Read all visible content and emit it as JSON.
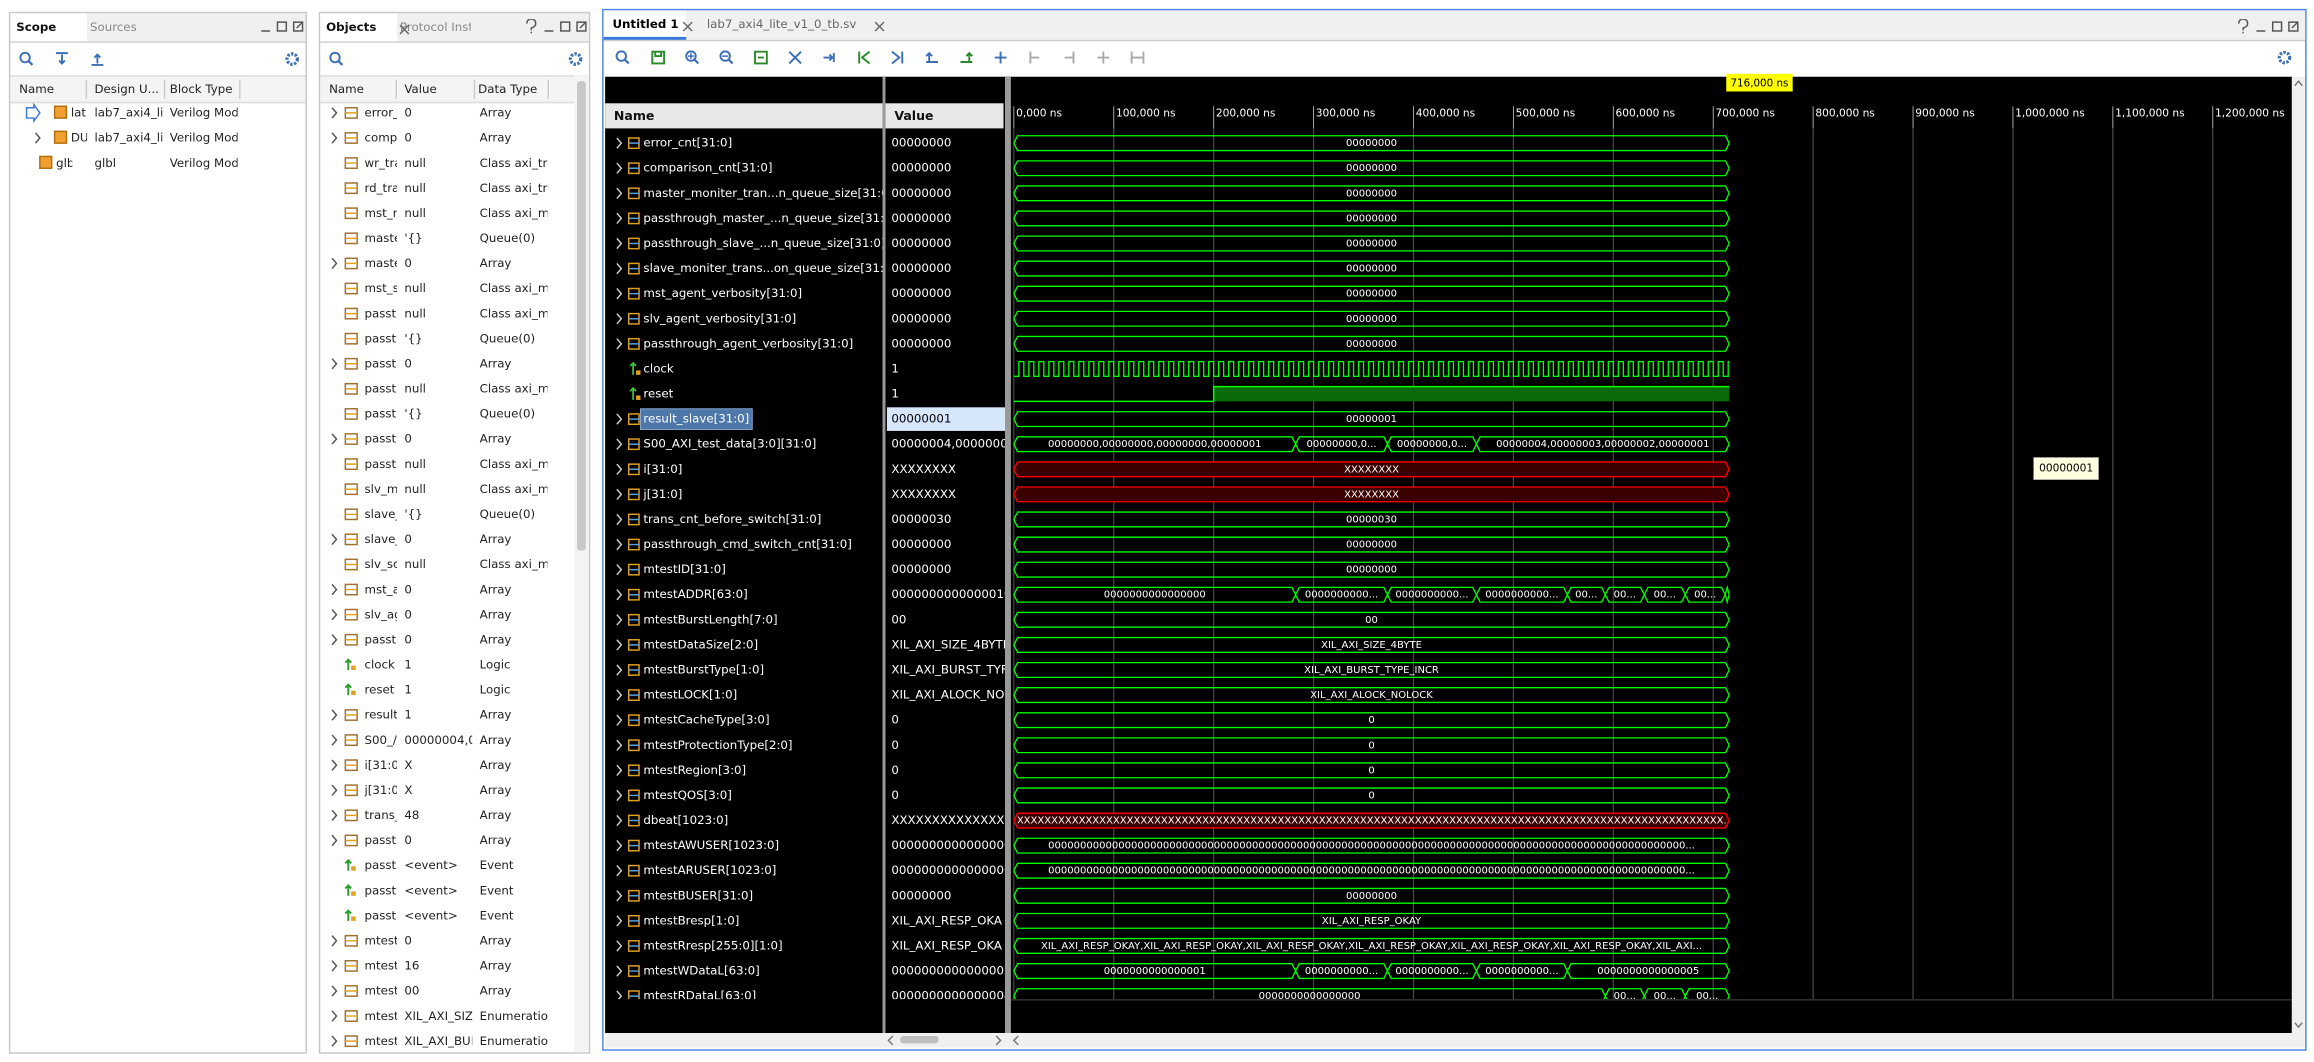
{
  "scope_panel": {
    "tabs": [
      "Scope",
      "Sources"
    ],
    "columns": [
      "Name",
      "Design U...",
      "Block Type"
    ],
    "rows": [
      [
        "lat",
        "lab7_axi4_li",
        "Verilog Modu"
      ],
      [
        "DU",
        "lab7_axi4_li",
        "Verilog Modu"
      ],
      [
        "glbl",
        "glbl",
        "Verilog Modu"
      ]
    ]
  },
  "objects_panel": {
    "tabs": [
      "Objects",
      "Protocol Inst"
    ],
    "columns": [
      "Name",
      "Value",
      "Data Type"
    ],
    "rows": [
      [
        "error_",
        "0",
        "Array"
      ],
      [
        "comp:",
        "0",
        "Array"
      ],
      [
        "wr_tra",
        "null",
        "Class axi_tr"
      ],
      [
        "rd_tra",
        "null",
        "Class axi_tr"
      ],
      [
        "mst_r",
        "null",
        "Class axi_m"
      ],
      [
        "maste",
        "'{}",
        "Queue(0)"
      ],
      [
        "maste",
        "0",
        "Array"
      ],
      [
        "mst_s",
        "null",
        "Class axi_m"
      ],
      [
        "passtl",
        "null",
        "Class axi_m"
      ],
      [
        "passtl",
        "'{}",
        "Queue(0)"
      ],
      [
        "passtl",
        "0",
        "Array"
      ],
      [
        "passtl",
        "null",
        "Class axi_m"
      ],
      [
        "passtl",
        "'{}",
        "Queue(0)"
      ],
      [
        "passtl",
        "0",
        "Array"
      ],
      [
        "passtl",
        "null",
        "Class axi_m"
      ],
      [
        "slv_m",
        "null",
        "Class axi_m"
      ],
      [
        "slave_",
        "'{}",
        "Queue(0)"
      ],
      [
        "slave_",
        "0",
        "Array"
      ],
      [
        "slv_sc",
        "null",
        "Class axi_m"
      ],
      [
        "mst_a",
        "0",
        "Array"
      ],
      [
        "slv_ag",
        "0",
        "Array"
      ],
      [
        "passtl",
        "0",
        "Array"
      ],
      [
        "clock",
        "1",
        "Logic"
      ],
      [
        "reset",
        "1",
        "Logic"
      ],
      [
        "result",
        "1",
        "Array"
      ],
      [
        "S00_/",
        "00000004,0",
        "Array"
      ],
      [
        "i[31:0]",
        "X",
        "Array"
      ],
      [
        "j[31:0]",
        "X",
        "Array"
      ],
      [
        "trans_",
        "48",
        "Array"
      ],
      [
        "passtl",
        "0",
        "Array"
      ],
      [
        "passtl",
        "<event>",
        "Event"
      ],
      [
        "passtl",
        "<event>",
        "Event"
      ],
      [
        "passtl",
        "<event>",
        "Event"
      ],
      [
        "mtestl",
        "0",
        "Array"
      ],
      [
        "mtest",
        "16",
        "Array"
      ],
      [
        "mtestl",
        "00",
        "Array"
      ],
      [
        "mtestl",
        "XIL_AXI_SIZ",
        "Enumeration"
      ],
      [
        "mtestl",
        "XIL_AXI_BUI",
        "Enumeration"
      ]
    ]
  },
  "wave_window": {
    "tabs": [
      "Untitled 1",
      "lab7_axi4_lite_v1_0_tb.sv"
    ],
    "columns": [
      "Name",
      "Value"
    ],
    "cursor": {
      "value": 716000,
      "label": "716,000 ns"
    },
    "marker_label": "00000001",
    "time_ticks": [
      {
        "value": 0,
        "label": "0,000 ns"
      },
      {
        "value": 100000,
        "label": "100,000 ns"
      },
      {
        "value": 200000,
        "label": "200,000 ns"
      },
      {
        "value": 300000,
        "label": "300,000 ns"
      },
      {
        "value": 400000,
        "label": "400,000 ns"
      },
      {
        "value": 500000,
        "label": "500,000 ns"
      },
      {
        "value": 600000,
        "label": "600,000 ns"
      },
      {
        "value": 700000,
        "label": "700,000 ns"
      },
      {
        "value": 800000,
        "label": "800,000 ns"
      },
      {
        "value": 900000,
        "label": "900,000 ns"
      },
      {
        "value": 1000000,
        "label": "1,000,000 ns"
      },
      {
        "value": 1100000,
        "label": "1,100,000 ns"
      },
      {
        "value": 1200000,
        "label": "1,200,000 ns"
      }
    ],
    "signals": [
      {
        "name": "error_cnt[31:0]",
        "value": "00000000",
        "kind": "bus",
        "color": "#00ff00",
        "wave": [
          {
            "t": 0,
            "label": "00000000"
          }
        ]
      },
      {
        "name": "comparison_cnt[31:0]",
        "value": "00000000",
        "kind": "bus",
        "color": "#00ff00",
        "wave": [
          {
            "t": 0,
            "label": "00000000"
          }
        ]
      },
      {
        "name": "master_moniter_tran...n_queue_size[31:0]",
        "value": "00000000",
        "kind": "bus",
        "color": "#00ff00",
        "wave": [
          {
            "t": 0,
            "label": "00000000"
          }
        ]
      },
      {
        "name": "passthrough_master_...n_queue_size[31:0]",
        "value": "00000000",
        "kind": "bus",
        "color": "#00ff00",
        "wave": [
          {
            "t": 0,
            "label": "00000000"
          }
        ]
      },
      {
        "name": "passthrough_slave_...n_queue_size[31:0]",
        "value": "00000000",
        "kind": "bus",
        "color": "#00ff00",
        "wave": [
          {
            "t": 0,
            "label": "00000000"
          }
        ]
      },
      {
        "name": "slave_moniter_trans...on_queue_size[31:0]",
        "value": "00000000",
        "kind": "bus",
        "color": "#00ff00",
        "wave": [
          {
            "t": 0,
            "label": "00000000"
          }
        ]
      },
      {
        "name": "mst_agent_verbosity[31:0]",
        "value": "00000000",
        "kind": "bus",
        "color": "#00ff00",
        "wave": [
          {
            "t": 0,
            "label": "00000000"
          }
        ]
      },
      {
        "name": "slv_agent_verbosity[31:0]",
        "value": "00000000",
        "kind": "bus",
        "color": "#00ff00",
        "wave": [
          {
            "t": 0,
            "label": "00000000"
          }
        ]
      },
      {
        "name": "passthrough_agent_verbosity[31:0]",
        "value": "00000000",
        "kind": "bus",
        "color": "#00ff00",
        "wave": [
          {
            "t": 0,
            "label": "00000000"
          }
        ]
      },
      {
        "name": "clock",
        "value": "1",
        "kind": "clock",
        "color": "#00ff00",
        "wave": [
          {
            "t": 0
          }
        ]
      },
      {
        "name": "reset",
        "value": "1",
        "kind": "bit",
        "color": "#00ff00",
        "wave": [
          {
            "t": 0,
            "level": 0
          },
          {
            "t": 200000,
            "level": 1
          }
        ]
      },
      {
        "name": "result_slave[31:0]",
        "value": "00000001",
        "kind": "bus",
        "color": "#00ff00",
        "selected": true,
        "wave": [
          {
            "t": 0,
            "label": "00000001"
          }
        ]
      },
      {
        "name": "S00_AXI_test_data[3:0][31:0]",
        "value": "00000004,00000003",
        "kind": "bus",
        "color": "#00ff00",
        "wave": [
          {
            "t": 0,
            "label": "00000000,00000000,00000000,00000001"
          },
          {
            "t": 282000,
            "label": "00000000,0..."
          },
          {
            "t": 374000,
            "label": "00000000,0..."
          },
          {
            "t": 463000,
            "label": "00000004,00000003,00000002,00000001"
          }
        ]
      },
      {
        "name": "i[31:0]",
        "value": "XXXXXXXX",
        "kind": "bus",
        "color": "#ff0000",
        "wave": [
          {
            "t": 0,
            "label": "XXXXXXXX"
          }
        ]
      },
      {
        "name": "j[31:0]",
        "value": "XXXXXXXX",
        "kind": "bus",
        "color": "#ff0000",
        "wave": [
          {
            "t": 0,
            "label": "XXXXXXXX"
          }
        ]
      },
      {
        "name": "trans_cnt_before_switch[31:0]",
        "value": "00000030",
        "kind": "bus",
        "color": "#00ff00",
        "wave": [
          {
            "t": 0,
            "label": "00000030"
          }
        ]
      },
      {
        "name": "passthrough_cmd_switch_cnt[31:0]",
        "value": "00000000",
        "kind": "bus",
        "color": "#00ff00",
        "wave": [
          {
            "t": 0,
            "label": "00000000"
          }
        ]
      },
      {
        "name": "mtestID[31:0]",
        "value": "00000000",
        "kind": "bus",
        "color": "#00ff00",
        "wave": [
          {
            "t": 0,
            "label": "00000000"
          }
        ]
      },
      {
        "name": "mtestADDR[63:0]",
        "value": "0000000000000010",
        "kind": "bus",
        "color": "#00ff00",
        "wave": [
          {
            "t": 0,
            "label": "0000000000000000"
          },
          {
            "t": 282000,
            "label": "0000000000..."
          },
          {
            "t": 374000,
            "label": "0000000000..."
          },
          {
            "t": 463000,
            "label": "0000000000..."
          },
          {
            "t": 554000,
            "label": "00..."
          },
          {
            "t": 592000,
            "label": "00..."
          },
          {
            "t": 631000,
            "label": "00..."
          },
          {
            "t": 672000,
            "label": "00..."
          },
          {
            "t": 712000
          }
        ]
      },
      {
        "name": "mtestBurstLength[7:0]",
        "value": "00",
        "kind": "bus",
        "color": "#00ff00",
        "wave": [
          {
            "t": 0,
            "label": "00"
          }
        ]
      },
      {
        "name": "mtestDataSize[2:0]",
        "value": "XIL_AXI_SIZE_4BYTE",
        "kind": "bus",
        "color": "#00ff00",
        "wave": [
          {
            "t": 0,
            "label": "XIL_AXI_SIZE_4BYTE"
          }
        ]
      },
      {
        "name": "mtestBurstType[1:0]",
        "value": "XIL_AXI_BURST_TYF",
        "kind": "bus",
        "color": "#00ff00",
        "wave": [
          {
            "t": 0,
            "label": "XIL_AXI_BURST_TYPE_INCR"
          }
        ]
      },
      {
        "name": "mtestLOCK[1:0]",
        "value": "XIL_AXI_ALOCK_NO",
        "kind": "bus",
        "color": "#00ff00",
        "wave": [
          {
            "t": 0,
            "label": "XIL_AXI_ALOCK_NOLOCK"
          }
        ]
      },
      {
        "name": "mtestCacheType[3:0]",
        "value": "0",
        "kind": "bus",
        "color": "#00ff00",
        "wave": [
          {
            "t": 0,
            "label": "0"
          }
        ]
      },
      {
        "name": "mtestProtectionType[2:0]",
        "value": "0",
        "kind": "bus",
        "color": "#00ff00",
        "wave": [
          {
            "t": 0,
            "label": "0"
          }
        ]
      },
      {
        "name": "mtestRegion[3:0]",
        "value": "0",
        "kind": "bus",
        "color": "#00ff00",
        "wave": [
          {
            "t": 0,
            "label": "0"
          }
        ]
      },
      {
        "name": "mtestQOS[3:0]",
        "value": "0",
        "kind": "bus",
        "color": "#00ff00",
        "wave": [
          {
            "t": 0,
            "label": "0"
          }
        ]
      },
      {
        "name": "dbeat[1023:0]",
        "value": "XXXXXXXXXXXXXXXXX",
        "kind": "bus",
        "color": "#ff0000",
        "wave": [
          {
            "t": 0,
            "label": "XXXXXXXXXXXXXXXXXXXXXXXXXXXXXXXXXXXXXXXXXXXXXXXXXXXXXXXXXXXXXXXXXXXXXXXXXXXXXXXXXXXXXXXXXXXXXXXXXXXXXXXX..."
          }
        ]
      },
      {
        "name": "mtestAWUSER[1023:0]",
        "value": "0000000000000000",
        "kind": "bus",
        "color": "#00ff00",
        "wave": [
          {
            "t": 0,
            "label": "0000000000000000000000000000000000000000000000000000000000000000000000000000000000000000000000000000..."
          }
        ]
      },
      {
        "name": "mtestARUSER[1023:0]",
        "value": "0000000000000000",
        "kind": "bus",
        "color": "#00ff00",
        "wave": [
          {
            "t": 0,
            "label": "0000000000000000000000000000000000000000000000000000000000000000000000000000000000000000000000000000..."
          }
        ]
      },
      {
        "name": "mtestBUSER[31:0]",
        "value": "00000000",
        "kind": "bus",
        "color": "#00ff00",
        "wave": [
          {
            "t": 0,
            "label": "00000000"
          }
        ]
      },
      {
        "name": "mtestBresp[1:0]",
        "value": "XIL_AXI_RESP_OKA",
        "kind": "bus",
        "color": "#00ff00",
        "wave": [
          {
            "t": 0,
            "label": "XIL_AXI_RESP_OKAY"
          }
        ]
      },
      {
        "name": "mtestRresp[255:0][1:0]",
        "value": "XIL_AXI_RESP_OKA",
        "kind": "bus",
        "color": "#00ff00",
        "wave": [
          {
            "t": 0,
            "label": "XIL_AXI_RESP_OKAY,XIL_AXI_RESP_OKAY,XIL_AXI_RESP_OKAY,XIL_AXI_RESP_OKAY,XIL_AXI_RESP_OKAY,XIL_AXI_RESP_OKAY,XIL_AXI..."
          }
        ]
      },
      {
        "name": "mtestWDataL[63:0]",
        "value": "0000000000000005",
        "kind": "bus",
        "color": "#00ff00",
        "wave": [
          {
            "t": 0,
            "label": "0000000000000001"
          },
          {
            "t": 282000,
            "label": "0000000000..."
          },
          {
            "t": 374000,
            "label": "0000000000..."
          },
          {
            "t": 463000,
            "label": "0000000000..."
          },
          {
            "t": 554000,
            "label": "0000000000000005"
          }
        ]
      },
      {
        "name": "mtestRDataL[63:0]",
        "value": "0000000000000004",
        "kind": "bus",
        "color": "#00ff00",
        "wave": [
          {
            "t": 0,
            "label": "0000000000000000"
          },
          {
            "t": 592000,
            "label": "00..."
          },
          {
            "t": 631000,
            "label": "00..."
          },
          {
            "t": 672000,
            "label": "00..."
          }
        ]
      }
    ]
  }
}
